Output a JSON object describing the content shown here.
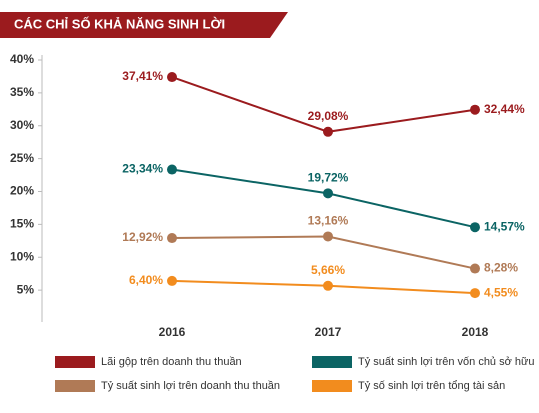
{
  "chart_data": {
    "type": "line",
    "title": "CÁC CHỈ SỐ  KHẢ NĂNG SINH LỜI",
    "categories": [
      "2016",
      "2017",
      "2018"
    ],
    "ylim": [
      0,
      40
    ],
    "yticks": [
      {
        "value": 5,
        "label": "5%"
      },
      {
        "value": 10,
        "label": "10%"
      },
      {
        "value": 15,
        "label": "15%"
      },
      {
        "value": 20,
        "label": "20%"
      },
      {
        "value": 25,
        "label": "25%"
      },
      {
        "value": 30,
        "label": "30%"
      },
      {
        "value": 35,
        "label": "35%"
      },
      {
        "value": 40,
        "label": "40%"
      }
    ],
    "series": [
      {
        "name": "Lãi gộp trên doanh thu thuần",
        "color": "#9b1b1e",
        "values": [
          37.41,
          29.08,
          32.44
        ],
        "value_labels": [
          "37,41%",
          "29,08%",
          "32,44%"
        ]
      },
      {
        "name": "Tỷ suất sinh lợi trên vốn chủ sở hữu",
        "color": "#0b6464",
        "values": [
          23.34,
          19.72,
          14.57
        ],
        "value_labels": [
          "23,34%",
          "19,72%",
          "14,57%"
        ]
      },
      {
        "name": "Tỷ suất sinh lợi trên doanh thu thuần",
        "color": "#b07a56",
        "values": [
          12.92,
          13.16,
          8.28
        ],
        "value_labels": [
          "12,92%",
          "13,16%",
          "8,28%"
        ]
      },
      {
        "name": "Tỷ số sinh lợi trên tổng tài sản",
        "color": "#f28c1e",
        "values": [
          6.4,
          5.66,
          4.55
        ],
        "value_labels": [
          "6,40%",
          "5,66%",
          "4,55%"
        ]
      }
    ]
  }
}
